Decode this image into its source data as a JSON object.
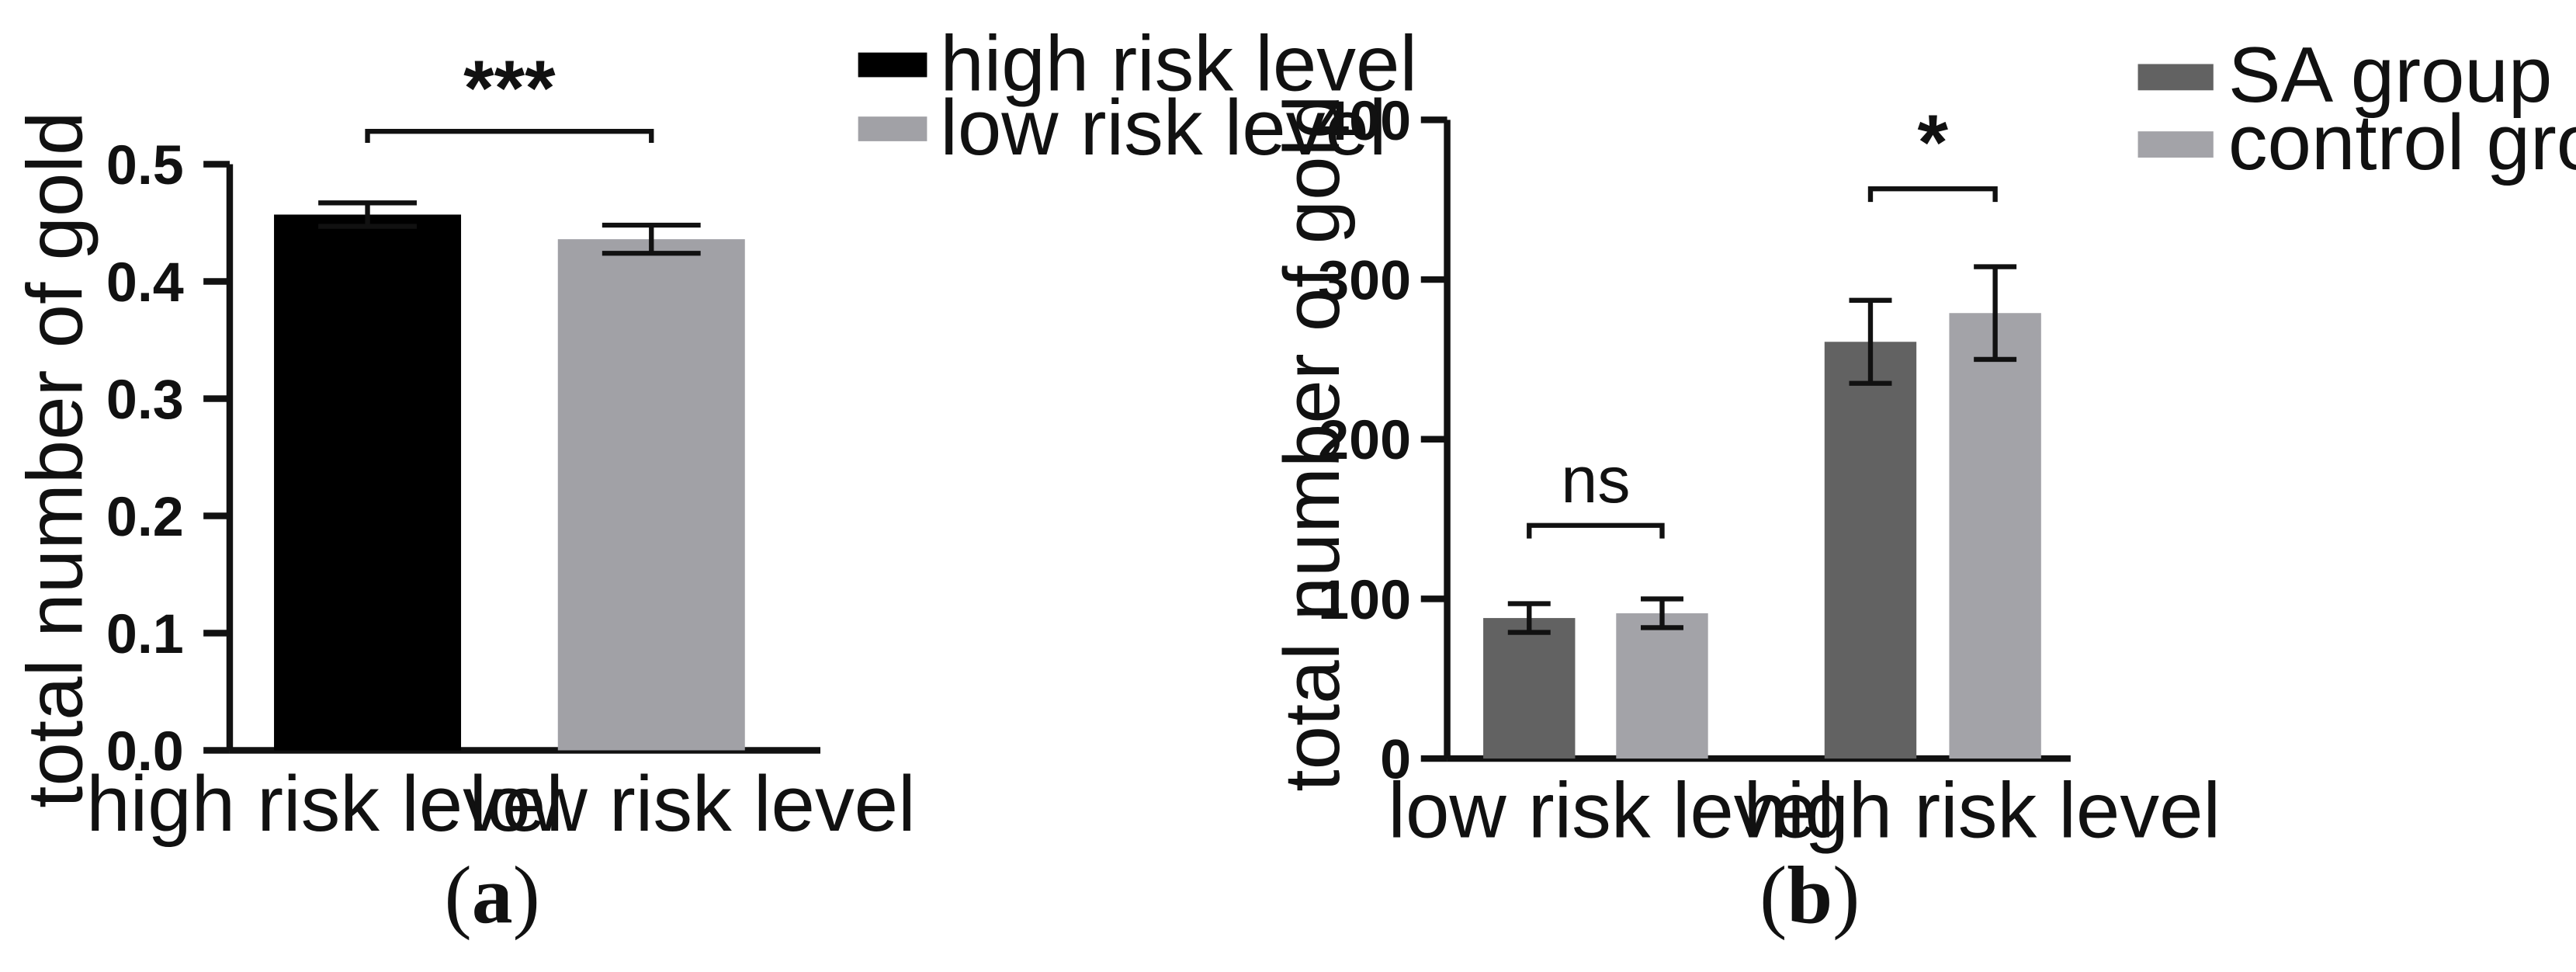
{
  "chart_data": [
    {
      "type": "bar",
      "panel_label": "a",
      "ylabel": "total number of gold",
      "ylim": [
        0,
        0.5
      ],
      "yticks": [
        "0.0",
        "0.1",
        "0.2",
        "0.3",
        "0.4",
        "0.5"
      ],
      "categories": [
        "high risk level",
        "low risk  level"
      ],
      "values": [
        0.457,
        0.436
      ],
      "errors": [
        0.01,
        0.012
      ],
      "colors": [
        "#000000",
        "#a1a1a6"
      ],
      "legend": {
        "position": "top-right",
        "entries": [
          {
            "label": "high risk level",
            "color": "#000000"
          },
          {
            "label": "low risk  level",
            "color": "#a1a1a6"
          }
        ]
      },
      "annotations": [
        {
          "text": "***",
          "between": [
            0,
            1
          ]
        }
      ]
    },
    {
      "type": "bar",
      "panel_label": "b",
      "ylabel": "total number of gold",
      "ylim": [
        0,
        400
      ],
      "yticks": [
        "0",
        "100",
        "200",
        "300",
        "400"
      ],
      "categories": [
        "low risk  level",
        "high risk level"
      ],
      "series": [
        {
          "name": "SA group",
          "color": "#626262",
          "values": [
            88,
            261
          ],
          "errors": [
            9,
            26
          ]
        },
        {
          "name": "control group",
          "color": "#a3a3a8",
          "values": [
            91,
            279
          ],
          "errors": [
            9,
            29
          ]
        }
      ],
      "legend": {
        "position": "top-right",
        "entries": [
          {
            "label": "SA group",
            "color": "#626262"
          },
          {
            "label": "control group",
            "color": "#a3a3a8"
          }
        ]
      },
      "annotations": [
        {
          "text": "ns",
          "category": 0
        },
        {
          "text": "*",
          "category": 1
        }
      ]
    }
  ]
}
